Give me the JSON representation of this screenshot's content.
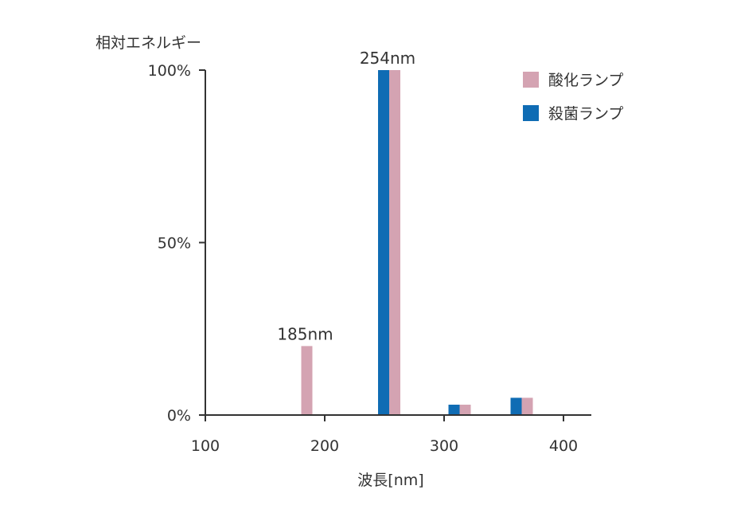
{
  "chart_data": {
    "type": "bar",
    "xlabel": "波長[nm]",
    "ylabel": "相対エネルギー",
    "xlim": [
      100,
      425
    ],
    "ylim": [
      0,
      100
    ],
    "x_ticks": [
      100,
      200,
      300,
      400
    ],
    "x_tick_labels": [
      "100",
      "200",
      "300",
      "400"
    ],
    "y_ticks": [
      0,
      50,
      100
    ],
    "y_tick_labels": [
      "0%",
      "50%",
      "100%"
    ],
    "legend_position": "top-right",
    "series": [
      {
        "name": "酸化ランプ",
        "color": "#d4a3b2",
        "points": [
          {
            "x": 185,
            "y": 20
          },
          {
            "x": 254,
            "y": 100
          },
          {
            "x": 313,
            "y": 3
          },
          {
            "x": 365,
            "y": 5
          }
        ]
      },
      {
        "name": "殺菌ランプ",
        "color": "#0f6cb4",
        "points": [
          {
            "x": 254,
            "y": 100
          },
          {
            "x": 313,
            "y": 3
          },
          {
            "x": 365,
            "y": 5
          }
        ]
      }
    ],
    "annotations": [
      {
        "x": 185,
        "text": "185nm"
      },
      {
        "x": 254,
        "text": "254nm"
      }
    ]
  }
}
